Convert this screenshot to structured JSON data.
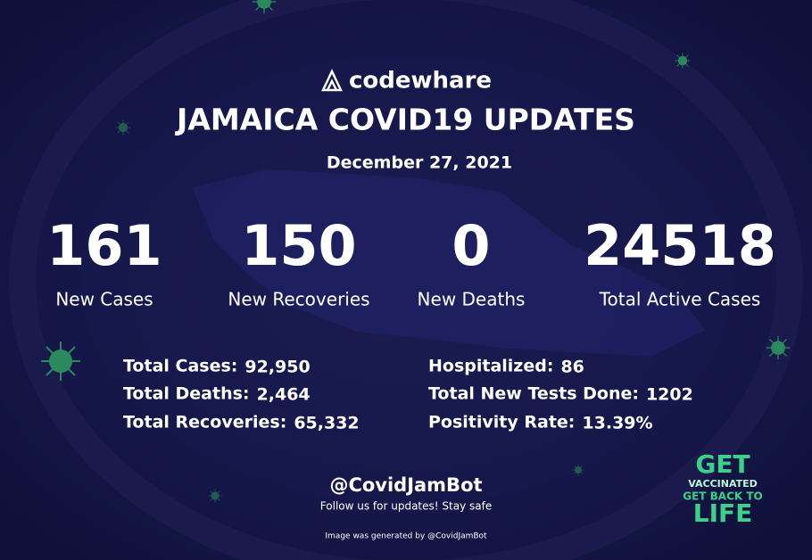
{
  "header": {
    "brand": "codewhare",
    "title": "JAMAICA COVID19 UPDATES",
    "date": "December 27, 2021"
  },
  "highlights": [
    {
      "value": "161",
      "label": "New Cases"
    },
    {
      "value": "150",
      "label": "New Recoveries"
    },
    {
      "value": "0",
      "label": "New Deaths"
    },
    {
      "value": "24518",
      "label": "Total Active Cases"
    }
  ],
  "details_left": [
    {
      "label": "Total Cases:",
      "value": "92,950"
    },
    {
      "label": "Total Deaths:",
      "value": "2,464"
    },
    {
      "label": "Total Recoveries:",
      "value": "65,332"
    }
  ],
  "details_right": [
    {
      "label": "Hospitalized:",
      "value": "86"
    },
    {
      "label": "Total New Tests Done:",
      "value": "1202"
    },
    {
      "label": "Positivity Rate:",
      "value": "13.39%"
    }
  ],
  "footer": {
    "handle": "@CovidJamBot",
    "tagline": "Follow us for updates! Stay safe",
    "credit": "Image was generated by @CovidJamBot"
  },
  "badge": {
    "line1": "GET",
    "line2": "VACCINATED",
    "line3": "GET BACK TO",
    "line4": "LIFE"
  }
}
